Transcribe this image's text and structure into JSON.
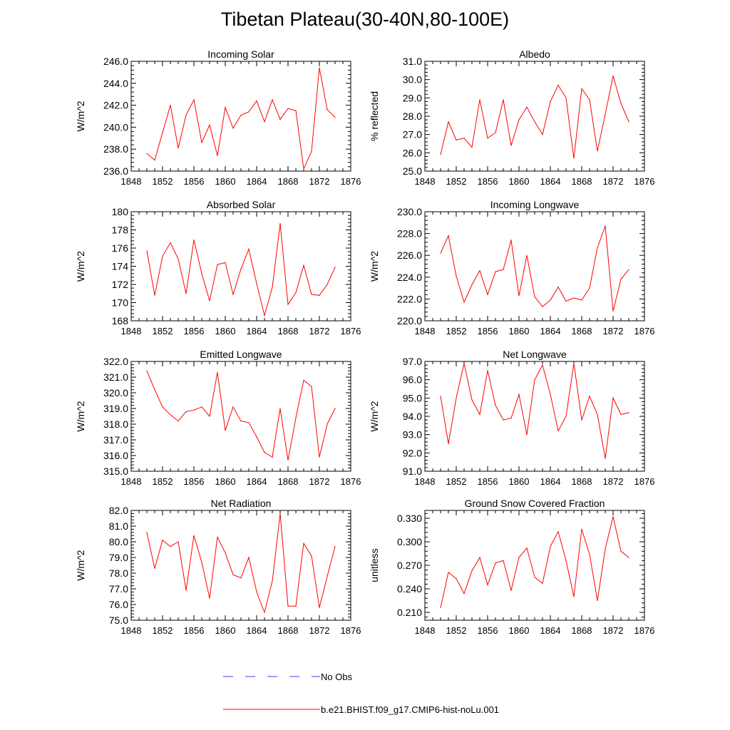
{
  "page": {
    "title": "Tibetan Plateau(30-40N,80-100E)"
  },
  "legend": [
    {
      "label": "No Obs",
      "color": "#3b3bff",
      "style": "dashed"
    },
    {
      "label": "b.e21.BHIST.f09_g17.CMIP6-hist-noLu.001",
      "color": "#ff0000",
      "style": "solid"
    }
  ],
  "chart_data": [
    {
      "type": "line",
      "title": "Incoming Solar",
      "ylabel": "W/m^2",
      "xlabel": "",
      "xlim": [
        1848,
        1876
      ],
      "ylim": [
        236,
        246
      ],
      "xticks": [
        "1848",
        "1852",
        "1856",
        "1860",
        "1864",
        "1868",
        "1872",
        "1876"
      ],
      "yticks": [
        "236.0",
        "238.0",
        "240.0",
        "242.0",
        "244.0",
        "246.0"
      ],
      "x": [
        1850,
        1851,
        1852,
        1853,
        1854,
        1855,
        1856,
        1857,
        1858,
        1859,
        1860,
        1861,
        1862,
        1863,
        1864,
        1865,
        1866,
        1867,
        1868,
        1869,
        1870,
        1871,
        1872,
        1873,
        1874
      ],
      "series": [
        {
          "color": "#ff0000",
          "values": [
            237.6,
            237.0,
            239.5,
            242.0,
            238.1,
            241.1,
            242.5,
            238.6,
            240.2,
            237.4,
            241.8,
            239.9,
            241.1,
            241.4,
            242.4,
            240.5,
            242.5,
            240.7,
            241.7,
            241.5,
            236.2,
            237.8,
            245.4,
            241.6,
            240.9
          ]
        }
      ]
    },
    {
      "type": "line",
      "title": "Albedo",
      "ylabel": "% reflected",
      "xlabel": "",
      "xlim": [
        1848,
        1876
      ],
      "ylim": [
        25,
        31
      ],
      "xticks": [
        "1848",
        "1852",
        "1856",
        "1860",
        "1864",
        "1868",
        "1872",
        "1876"
      ],
      "yticks": [
        "25.0",
        "26.0",
        "27.0",
        "28.0",
        "29.0",
        "30.0",
        "31.0"
      ],
      "x": [
        1850,
        1851,
        1852,
        1853,
        1854,
        1855,
        1856,
        1857,
        1858,
        1859,
        1860,
        1861,
        1862,
        1863,
        1864,
        1865,
        1866,
        1867,
        1868,
        1869,
        1870,
        1871,
        1872,
        1873,
        1874
      ],
      "series": [
        {
          "color": "#ff0000",
          "values": [
            25.9,
            27.7,
            26.7,
            26.8,
            26.3,
            28.9,
            26.8,
            27.1,
            28.9,
            26.4,
            27.8,
            28.5,
            27.7,
            27.0,
            28.8,
            29.7,
            29.0,
            25.7,
            29.5,
            28.9,
            26.1,
            28.1,
            30.2,
            28.7,
            27.7
          ]
        }
      ]
    },
    {
      "type": "line",
      "title": "Absorbed Solar",
      "ylabel": "W/m^2",
      "xlabel": "",
      "xlim": [
        1848,
        1876
      ],
      "ylim": [
        168,
        180
      ],
      "xticks": [
        "1848",
        "1852",
        "1856",
        "1860",
        "1864",
        "1868",
        "1872",
        "1876"
      ],
      "yticks": [
        "168",
        "170",
        "172",
        "174",
        "176",
        "178",
        "180"
      ],
      "x": [
        1850,
        1851,
        1852,
        1853,
        1854,
        1855,
        1856,
        1857,
        1858,
        1859,
        1860,
        1861,
        1862,
        1863,
        1864,
        1865,
        1866,
        1867,
        1868,
        1869,
        1870,
        1871,
        1872,
        1873,
        1874
      ],
      "series": [
        {
          "color": "#ff0000",
          "values": [
            175.7,
            170.8,
            175.1,
            176.6,
            174.8,
            171.0,
            176.9,
            173.2,
            170.2,
            174.2,
            174.4,
            170.9,
            173.7,
            175.9,
            172.1,
            168.6,
            171.7,
            178.7,
            169.8,
            171.1,
            174.1,
            170.9,
            170.8,
            172.0,
            173.9
          ]
        }
      ]
    },
    {
      "type": "line",
      "title": "Incoming Longwave",
      "ylabel": "W/m^2",
      "xlabel": "",
      "xlim": [
        1848,
        1876
      ],
      "ylim": [
        220,
        230
      ],
      "xticks": [
        "1848",
        "1852",
        "1856",
        "1860",
        "1864",
        "1868",
        "1872",
        "1876"
      ],
      "yticks": [
        "220.0",
        "222.0",
        "224.0",
        "226.0",
        "228.0",
        "230.0"
      ],
      "x": [
        1850,
        1851,
        1852,
        1853,
        1854,
        1855,
        1856,
        1857,
        1858,
        1859,
        1860,
        1861,
        1862,
        1863,
        1864,
        1865,
        1866,
        1867,
        1868,
        1869,
        1870,
        1871,
        1872,
        1873,
        1874
      ],
      "series": [
        {
          "color": "#ff0000",
          "values": [
            226.2,
            227.8,
            224.1,
            221.7,
            223.3,
            224.6,
            222.4,
            224.5,
            224.7,
            227.4,
            222.3,
            226.0,
            222.2,
            221.3,
            221.9,
            223.1,
            221.8,
            222.1,
            221.9,
            223.0,
            226.7,
            228.7,
            220.9,
            223.8,
            224.7
          ]
        }
      ]
    },
    {
      "type": "line",
      "title": "Emitted Longwave",
      "ylabel": "W/m^2",
      "xlabel": "",
      "xlim": [
        1848,
        1876
      ],
      "ylim": [
        315,
        322
      ],
      "xticks": [
        "1848",
        "1852",
        "1856",
        "1860",
        "1864",
        "1868",
        "1872",
        "1876"
      ],
      "yticks": [
        "315.0",
        "316.0",
        "317.0",
        "318.0",
        "319.0",
        "320.0",
        "321.0",
        "322.0"
      ],
      "x": [
        1850,
        1851,
        1852,
        1853,
        1854,
        1855,
        1856,
        1857,
        1858,
        1859,
        1860,
        1861,
        1862,
        1863,
        1864,
        1865,
        1866,
        1867,
        1868,
        1869,
        1870,
        1871,
        1872,
        1873,
        1874
      ],
      "series": [
        {
          "color": "#ff0000",
          "values": [
            321.4,
            320.2,
            319.1,
            318.6,
            318.2,
            318.8,
            318.9,
            319.1,
            318.5,
            321.3,
            317.6,
            319.1,
            318.2,
            318.1,
            317.2,
            316.2,
            315.9,
            319.0,
            315.7,
            318.4,
            320.8,
            320.4,
            315.9,
            318.0,
            319.0
          ]
        }
      ]
    },
    {
      "type": "line",
      "title": "Net Longwave",
      "ylabel": "W/m^2",
      "xlabel": "",
      "xlim": [
        1848,
        1876
      ],
      "ylim": [
        91,
        97
      ],
      "xticks": [
        "1848",
        "1852",
        "1856",
        "1860",
        "1864",
        "1868",
        "1872",
        "1876"
      ],
      "yticks": [
        "91.0",
        "92.0",
        "93.0",
        "94.0",
        "95.0",
        "96.0",
        "97.0"
      ],
      "x": [
        1850,
        1851,
        1852,
        1853,
        1854,
        1855,
        1856,
        1857,
        1858,
        1859,
        1860,
        1861,
        1862,
        1863,
        1864,
        1865,
        1866,
        1867,
        1868,
        1869,
        1870,
        1871,
        1872,
        1873,
        1874
      ],
      "series": [
        {
          "color": "#ff0000",
          "values": [
            95.1,
            92.5,
            95.0,
            96.9,
            94.9,
            94.1,
            96.5,
            94.6,
            93.8,
            93.9,
            95.2,
            93.0,
            96.0,
            96.8,
            95.2,
            93.2,
            94.0,
            96.9,
            93.8,
            95.1,
            94.1,
            91.7,
            95.0,
            94.1,
            94.2
          ]
        }
      ]
    },
    {
      "type": "line",
      "title": "Net Radiation",
      "ylabel": "W/m^2",
      "xlabel": "",
      "xlim": [
        1848,
        1876
      ],
      "ylim": [
        75,
        82
      ],
      "xticks": [
        "1848",
        "1852",
        "1856",
        "1860",
        "1864",
        "1868",
        "1872",
        "1876"
      ],
      "yticks": [
        "75.0",
        "76.0",
        "77.0",
        "78.0",
        "79.0",
        "80.0",
        "81.0",
        "82.0"
      ],
      "x": [
        1850,
        1851,
        1852,
        1853,
        1854,
        1855,
        1856,
        1857,
        1858,
        1859,
        1860,
        1861,
        1862,
        1863,
        1864,
        1865,
        1866,
        1867,
        1868,
        1869,
        1870,
        1871,
        1872,
        1873,
        1874
      ],
      "series": [
        {
          "color": "#ff0000",
          "values": [
            80.6,
            78.3,
            80.1,
            79.7,
            80.0,
            76.9,
            80.4,
            78.7,
            76.4,
            80.3,
            79.3,
            77.9,
            77.7,
            79.0,
            76.8,
            75.5,
            77.5,
            81.8,
            75.9,
            75.9,
            79.9,
            79.1,
            75.8,
            77.8,
            79.7
          ]
        }
      ]
    },
    {
      "type": "line",
      "title": "Ground Snow Covered Fraction",
      "ylabel": "unitless",
      "xlabel": "",
      "xlim": [
        1848,
        1876
      ],
      "ylim": [
        0.2,
        0.34
      ],
      "xticks": [
        "1848",
        "1852",
        "1856",
        "1860",
        "1864",
        "1868",
        "1872",
        "1876"
      ],
      "yticks": [
        "0.210",
        "0.240",
        "0.270",
        "0.300",
        "0.330"
      ],
      "x": [
        1850,
        1851,
        1852,
        1853,
        1854,
        1855,
        1856,
        1857,
        1858,
        1859,
        1860,
        1861,
        1862,
        1863,
        1864,
        1865,
        1866,
        1867,
        1868,
        1869,
        1870,
        1871,
        1872,
        1873,
        1874
      ],
      "series": [
        {
          "color": "#ff0000",
          "values": [
            0.216,
            0.261,
            0.253,
            0.234,
            0.263,
            0.28,
            0.245,
            0.273,
            0.276,
            0.238,
            0.28,
            0.292,
            0.255,
            0.247,
            0.294,
            0.313,
            0.276,
            0.23,
            0.316,
            0.284,
            0.225,
            0.291,
            0.332,
            0.288,
            0.28
          ]
        }
      ]
    }
  ]
}
